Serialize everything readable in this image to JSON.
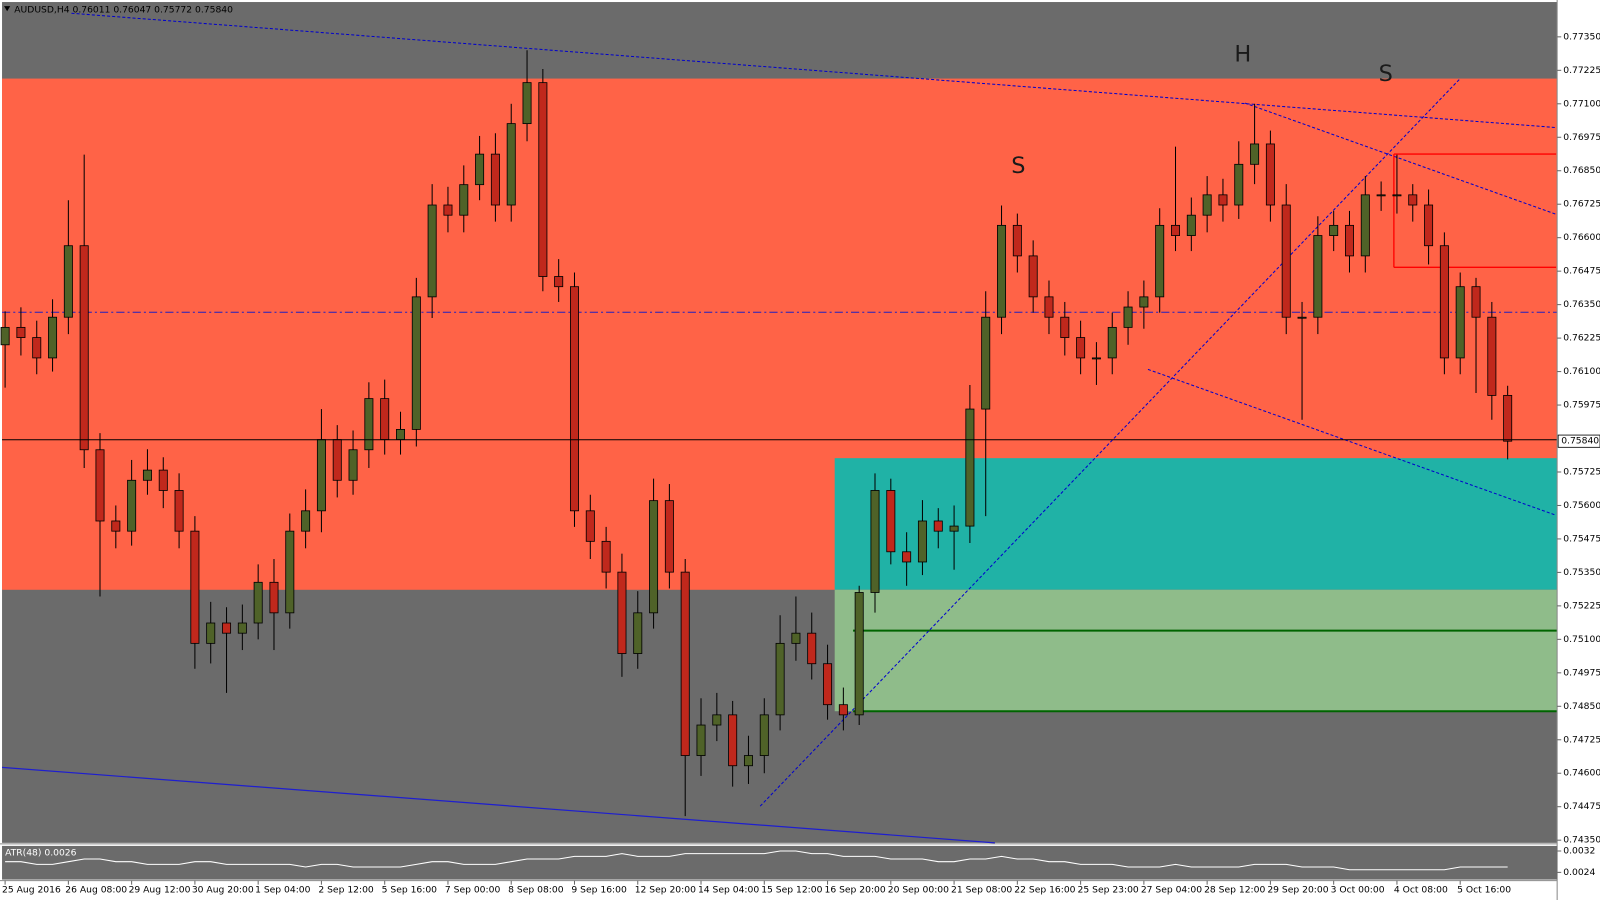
{
  "chart_data": {
    "type": "candlestick",
    "title": "AUDUSD,H4  0.76011 0.76047 0.75772 0.75840",
    "categories": [
      "25 Aug 2016",
      null,
      null,
      null,
      "26 Aug 08:00",
      null,
      null,
      null,
      "29 Aug 12:00",
      null,
      null,
      null,
      "30 Aug 20:00",
      null,
      null,
      null,
      "1 Sep 04:00",
      null,
      null,
      null,
      "2 Sep 12:00",
      null,
      null,
      null,
      "5 Sep 16:00",
      null,
      null,
      null,
      "7 Sep 00:00",
      null,
      null,
      null,
      "8 Sep 08:00",
      null,
      null,
      null,
      "9 Sep 16:00",
      null,
      null,
      null,
      "12 Sep 20:00",
      null,
      null,
      null,
      "14 Sep 04:00",
      null,
      null,
      null,
      "15 Sep 12:00",
      null,
      null,
      null,
      "16 Sep 20:00",
      null,
      null,
      null,
      "20 Sep 00:00",
      null,
      null,
      null,
      "21 Sep 08:00",
      null,
      null,
      null,
      "22 Sep 16:00",
      null,
      null,
      null,
      "25 Sep 23:00",
      null,
      null,
      null,
      "27 Sep 04:00",
      null,
      null,
      null,
      "28 Sep 12:00",
      null,
      null,
      null,
      "29 Sep 20:00",
      null,
      null,
      null,
      "3 Oct 00:00",
      null,
      null,
      null,
      "4 Oct 08:00",
      null,
      null,
      null,
      "5 Oct 16:00",
      null,
      null,
      null
    ],
    "open": [
      0.762,
      0.76265,
      0.76227,
      0.76151,
      0.76303,
      0.7657,
      0.75808,
      0.75542,
      0.75504,
      0.75694,
      0.75732,
      0.75656,
      0.75504,
      0.75085,
      0.75161,
      0.75123,
      0.75161,
      0.75313,
      0.75199,
      0.75504,
      0.7558,
      0.75846,
      0.75694,
      0.75808,
      0.75999,
      0.75846,
      0.75884,
      0.76379,
      0.76722,
      0.76684,
      0.76798,
      0.76912,
      0.76722,
      0.77026,
      0.77179,
      0.76455,
      0.76417,
      0.7558,
      0.75466,
      0.75351,
      0.75047,
      0.75199,
      0.75618,
      0.75351,
      0.74666,
      0.7478,
      0.74818,
      0.74628,
      0.74666,
      0.74818,
      0.75085,
      0.75123,
      0.75009,
      0.74856,
      0.74818,
      0.75275,
      0.75656,
      0.75427,
      0.75389,
      0.75542,
      0.75504,
      0.75523,
      0.7596,
      0.76303,
      0.76646,
      0.76532,
      0.76379,
      0.76303,
      0.76227,
      0.76151,
      0.76151,
      0.76265,
      0.76341,
      0.76379,
      0.76646,
      0.76608,
      0.76684,
      0.7676,
      0.76722,
      0.76874,
      0.7695,
      0.76722,
      0.76303,
      0.76303,
      0.76608,
      0.76646,
      0.76532,
      0.7676,
      0.7676,
      0.7676,
      0.76722,
      0.7657,
      0.76151,
      0.76417,
      0.76303,
      0.76011
    ],
    "high": [
      0.76325,
      0.7634,
      0.7629,
      0.7637,
      0.7674,
      0.7691,
      0.7587,
      0.756,
      0.7577,
      0.7581,
      0.7578,
      0.7572,
      0.7556,
      0.7524,
      0.7522,
      0.7523,
      0.7538,
      0.754,
      0.7557,
      0.7566,
      0.7596,
      0.759,
      0.7588,
      0.7606,
      0.7607,
      0.7595,
      0.7645,
      0.768,
      0.7679,
      0.7687,
      0.7698,
      0.7699,
      0.771,
      0.773,
      0.7723,
      0.7652,
      0.7647,
      0.7564,
      0.7552,
      0.7542,
      0.7528,
      0.757,
      0.7568,
      0.754,
      0.7488,
      0.749,
      0.7487,
      0.7474,
      0.7488,
      0.7519,
      0.7526,
      0.752,
      0.7508,
      0.7492,
      0.753,
      0.7572,
      0.757,
      0.755,
      0.7562,
      0.7559,
      0.756,
      0.7605,
      0.764,
      0.7672,
      0.7669,
      0.7659,
      0.7644,
      0.7636,
      0.7629,
      0.7621,
      0.7632,
      0.764,
      0.7644,
      0.7671,
      0.7694,
      0.7675,
      0.7683,
      0.7682,
      0.7696,
      0.771,
      0.77,
      0.768,
      0.7636,
      0.7668,
      0.767,
      0.767,
      0.7683,
      0.7681,
      0.7691,
      0.768,
      0.7678,
      0.7662,
      0.7647,
      0.7645,
      0.7636,
      0.76047
    ],
    "low": [
      0.7604,
      0.7616,
      0.7609,
      0.761,
      0.7624,
      0.7574,
      0.7526,
      0.7544,
      0.7545,
      0.7564,
      0.7559,
      0.7544,
      0.7499,
      0.7501,
      0.749,
      0.7506,
      0.751,
      0.7506,
      0.7514,
      0.7544,
      0.755,
      0.7563,
      0.7564,
      0.7574,
      0.7579,
      0.7579,
      0.7582,
      0.763,
      0.7662,
      0.7662,
      0.7674,
      0.7666,
      0.7666,
      0.7696,
      0.764,
      0.7636,
      0.7552,
      0.754,
      0.7529,
      0.7496,
      0.7499,
      0.7514,
      0.7529,
      0.7444,
      0.7459,
      0.7472,
      0.7455,
      0.7456,
      0.746,
      0.7476,
      0.7502,
      0.7495,
      0.748,
      0.7476,
      0.7478,
      0.752,
      0.7538,
      0.753,
      0.7534,
      0.7544,
      0.7536,
      0.7546,
      0.7556,
      0.7624,
      0.7647,
      0.7632,
      0.7624,
      0.7616,
      0.7609,
      0.7605,
      0.7609,
      0.762,
      0.7626,
      0.7632,
      0.7655,
      0.7655,
      0.7662,
      0.7666,
      0.7667,
      0.768,
      0.7666,
      0.7624,
      0.7592,
      0.7624,
      0.7655,
      0.7647,
      0.7647,
      0.767,
      0.7669,
      0.7666,
      0.765,
      0.7609,
      0.7609,
      0.7602,
      0.7592,
      0.75772
    ],
    "close": [
      0.76265,
      0.76227,
      0.76151,
      0.76303,
      0.7657,
      0.75808,
      0.75542,
      0.75504,
      0.75694,
      0.75732,
      0.75656,
      0.75504,
      0.75085,
      0.75161,
      0.75123,
      0.75161,
      0.75313,
      0.75199,
      0.75504,
      0.7558,
      0.75846,
      0.75694,
      0.75808,
      0.75999,
      0.75846,
      0.75884,
      0.76379,
      0.76722,
      0.76684,
      0.76798,
      0.76912,
      0.76722,
      0.77026,
      0.77179,
      0.76455,
      0.76417,
      0.7558,
      0.75466,
      0.75351,
      0.75047,
      0.75199,
      0.75618,
      0.75351,
      0.74666,
      0.7478,
      0.74818,
      0.74628,
      0.74666,
      0.74818,
      0.75085,
      0.75123,
      0.75009,
      0.74856,
      0.74818,
      0.75275,
      0.75656,
      0.75427,
      0.75389,
      0.75542,
      0.75504,
      0.75523,
      0.7596,
      0.76303,
      0.76646,
      0.76532,
      0.76379,
      0.76303,
      0.76227,
      0.76151,
      0.76151,
      0.76265,
      0.76341,
      0.76379,
      0.76646,
      0.76608,
      0.76684,
      0.7676,
      0.76722,
      0.76874,
      0.7695,
      0.76722,
      0.76303,
      0.76303,
      0.76608,
      0.76646,
      0.76532,
      0.7676,
      0.7676,
      0.7676,
      0.76722,
      0.7657,
      0.76151,
      0.76417,
      0.76303,
      0.76011,
      0.7584
    ],
    "up_color": "#4f6228",
    "down_color": "#c0281c",
    "ylim": [
      0.7434,
      0.7748
    ],
    "yticks": [
      {
        "value": 0.7735,
        "label": "0.77350"
      },
      0.77225,
      {
        "value": 0.771,
        "label": "0.77100"
      },
      0.76975,
      {
        "value": 0.7685,
        "label": "0.76850"
      },
      0.76725,
      {
        "value": 0.766,
        "label": "0.76600"
      },
      0.76475,
      {
        "value": 0.7635,
        "label": "0.76350"
      },
      0.76225,
      {
        "value": 0.761,
        "label": "0.76100"
      },
      0.75975,
      0.75725,
      {
        "value": 0.756,
        "label": "0.75600"
      },
      0.75475,
      {
        "value": 0.7535,
        "label": "0.75350"
      },
      0.75225,
      {
        "value": 0.751,
        "label": "0.75100"
      },
      0.74975,
      {
        "value": 0.7485,
        "label": "0.74850"
      },
      0.74725,
      {
        "value": 0.746,
        "label": "0.74600"
      },
      0.74475,
      {
        "value": 0.7435,
        "label": "0.74350"
      }
    ],
    "current_price": {
      "value": 0.7584,
      "label": "0.75840"
    },
    "annotations": [
      "S",
      "H",
      "S"
    ],
    "indicator": {
      "title": "ATR(48) 0.0026",
      "color": "#ffffff",
      "values": [
        0.0028,
        0.0028,
        0.0027,
        0.0027,
        0.0028,
        0.0029,
        0.0029,
        0.0028,
        0.0028,
        0.0027,
        0.0027,
        0.0027,
        0.0028,
        0.0028,
        0.0027,
        0.0027,
        0.0027,
        0.0027,
        0.0027,
        0.0026,
        0.0027,
        0.0027,
        0.0026,
        0.0026,
        0.0026,
        0.0026,
        0.0027,
        0.0028,
        0.0028,
        0.0027,
        0.0027,
        0.0027,
        0.0028,
        0.0029,
        0.0029,
        0.0029,
        0.003,
        0.003,
        0.003,
        0.0031,
        0.003,
        0.003,
        0.003,
        0.0031,
        0.0031,
        0.0031,
        0.0031,
        0.0031,
        0.0031,
        0.0032,
        0.0032,
        0.0031,
        0.0031,
        0.003,
        0.003,
        0.003,
        0.0029,
        0.0029,
        0.0029,
        0.0028,
        0.0028,
        0.0029,
        0.0029,
        0.003,
        0.0029,
        0.0029,
        0.0028,
        0.0028,
        0.0027,
        0.0027,
        0.0027,
        0.0026,
        0.0026,
        0.0026,
        0.0027,
        0.0026,
        0.0026,
        0.0026,
        0.0026,
        0.0027,
        0.0027,
        0.0027,
        0.0026,
        0.0026,
        0.0026,
        0.0025,
        0.0025,
        0.0025,
        0.0025,
        0.0025,
        0.0025,
        0.0025,
        0.0026,
        0.0026,
        0.0026,
        0.0026
      ],
      "ylim": [
        0.00213,
        0.00339
      ],
      "yticks": [
        0.0032,
        0.0024
      ]
    }
  }
}
